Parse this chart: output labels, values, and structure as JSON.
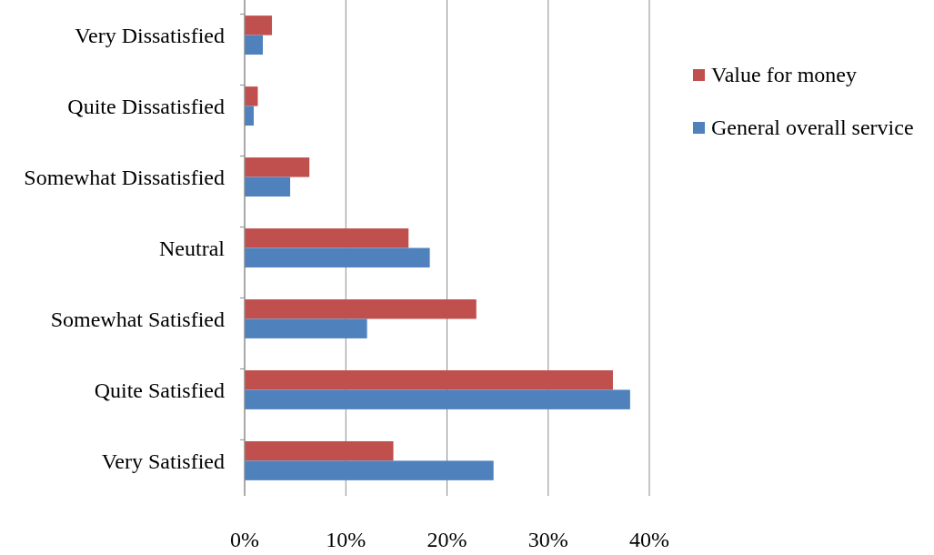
{
  "chart_data": {
    "type": "bar",
    "orientation": "horizontal",
    "categories": [
      "Very Dissatisfied",
      "Quite Dissatisfied",
      "Somewhat Dissatisfied",
      "Neutral",
      "Somewhat Satisfied",
      "Quite Satisfied",
      "Very Satisfied"
    ],
    "series": [
      {
        "name": "Value for money",
        "color": "#c0504d",
        "values": [
          2.7,
          1.3,
          6.4,
          16.2,
          22.9,
          36.4,
          14.7
        ]
      },
      {
        "name": "General overall service",
        "color": "#4f81bd",
        "values": [
          1.8,
          0.9,
          4.5,
          18.3,
          12.1,
          38.1,
          24.6
        ]
      }
    ],
    "xlim": [
      0,
      40
    ],
    "xticks": [
      {
        "value": 0,
        "label": "0%"
      },
      {
        "value": 10,
        "label": "10%"
      },
      {
        "value": 20,
        "label": "20%"
      },
      {
        "value": 30,
        "label": "30%"
      },
      {
        "value": 40,
        "label": "40%"
      }
    ],
    "grid": "x",
    "legend": "right"
  }
}
